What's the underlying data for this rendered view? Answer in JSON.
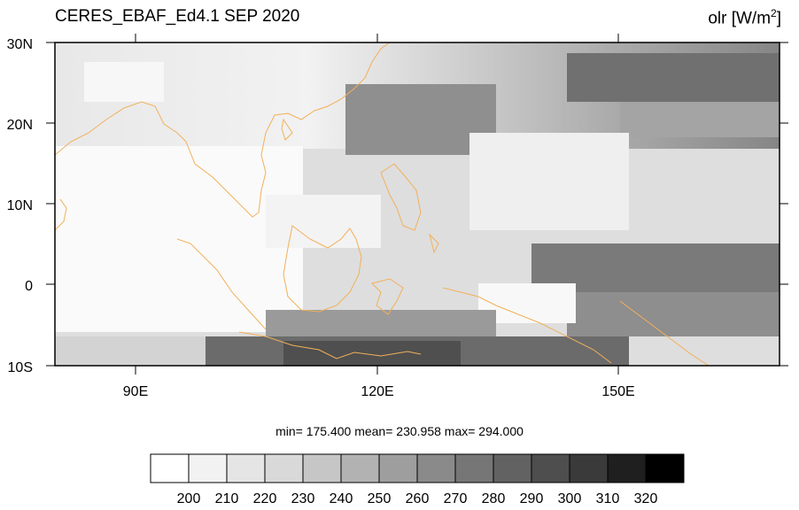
{
  "title_left": "CERES_EBAF_Ed4.1 SEP 2020",
  "title_right": {
    "var": "olr [W/m",
    "exp": "2",
    "close": "]"
  },
  "lat_labels": [
    "30N",
    "20N",
    "10N",
    "0",
    "10S"
  ],
  "lon_labels": [
    "90E",
    "120E",
    "150E"
  ],
  "stats": "min= 175.400  mean= 230.958  max= 294.000",
  "colorbar": {
    "labels": [
      "200",
      "210",
      "220",
      "230",
      "240",
      "250",
      "260",
      "270",
      "280",
      "290",
      "300",
      "310",
      "320"
    ],
    "colors": [
      "#ffffff",
      "#f2f2f2",
      "#e5e5e5",
      "#d9d9d9",
      "#c6c6c6",
      "#b2b2b2",
      "#9e9e9e",
      "#8a8a8a",
      "#767676",
      "#626262",
      "#4e4e4e",
      "#3a3a3a",
      "#1f1f1f",
      "#000000"
    ]
  },
  "coast_color": "#f2b05a"
}
